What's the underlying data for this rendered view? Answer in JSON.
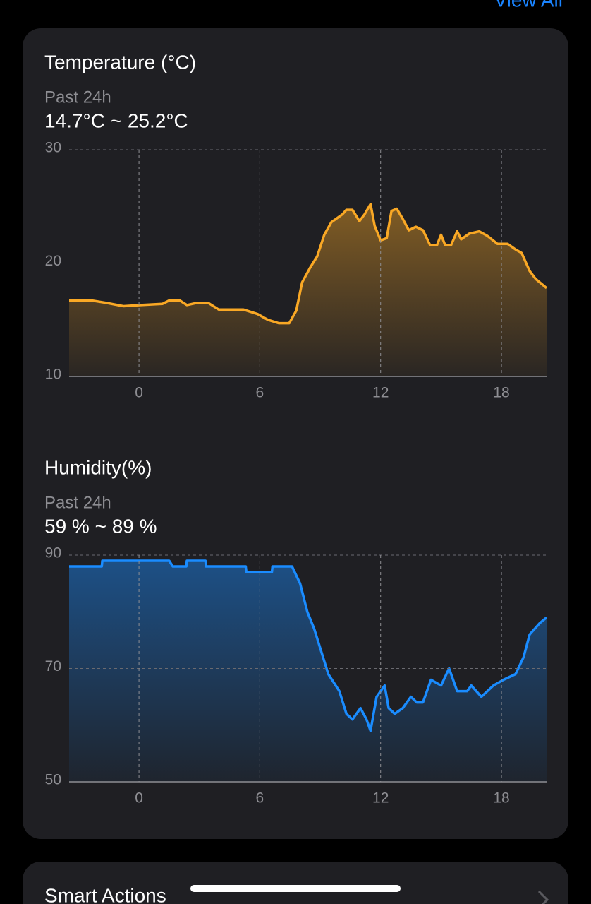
{
  "header": {
    "view_all": "View All"
  },
  "chart_data": [
    {
      "type": "area",
      "title": "Temperature (°C)",
      "subtitle": "Past 24h",
      "range_text": "14.7°C ~ 25.2°C",
      "color": "#f9a825",
      "x": [
        -3.47,
        -2.35,
        -1.65,
        -0.77,
        0.1,
        1.16,
        1.5,
        2.03,
        2.38,
        2.9,
        3.43,
        3.96,
        5.19,
        5.89,
        6.4,
        6.94,
        7.46,
        7.81,
        8.1,
        8.5,
        8.85,
        9.2,
        9.55,
        10.1,
        10.3,
        10.6,
        10.95,
        11.2,
        11.5,
        11.7,
        12.0,
        12.3,
        12.54,
        12.8,
        13.1,
        13.4,
        13.75,
        14.1,
        14.45,
        14.8,
        15.0,
        15.2,
        15.5,
        15.8,
        16.0,
        16.4,
        16.9,
        17.3,
        17.8,
        18.3,
        18.7,
        19.0,
        19.4,
        19.7,
        20.24
      ],
      "values": [
        16.7,
        16.7,
        16.5,
        16.2,
        16.3,
        16.4,
        16.7,
        16.7,
        16.3,
        16.5,
        16.5,
        15.9,
        15.9,
        15.5,
        15.0,
        14.7,
        14.7,
        15.8,
        18.3,
        19.6,
        20.6,
        22.5,
        23.6,
        24.3,
        24.7,
        24.7,
        23.7,
        24.3,
        25.2,
        23.3,
        22.0,
        22.2,
        24.6,
        24.8,
        23.9,
        22.9,
        23.2,
        22.9,
        21.6,
        21.6,
        22.5,
        21.6,
        21.6,
        22.8,
        22.1,
        22.6,
        22.8,
        22.4,
        21.7,
        21.7,
        21.2,
        20.9,
        19.3,
        18.6,
        17.8
      ],
      "xlim": [
        -3.47,
        20.24
      ],
      "xticks": [
        0,
        6,
        12,
        18
      ],
      "ylim": [
        10,
        30
      ],
      "yticks": [
        10,
        20,
        30
      ],
      "grid": true
    },
    {
      "type": "area",
      "title": "Humidity(%)",
      "subtitle": "Past 24h",
      "range_text": "59 % ~ 89 %",
      "color": "#1a8cff",
      "x": [
        -3.47,
        -1.85,
        -1.82,
        1.5,
        1.68,
        2.35,
        2.38,
        3.3,
        3.33,
        5.3,
        5.33,
        6.6,
        6.63,
        7.6,
        8.0,
        8.36,
        8.7,
        9.05,
        9.4,
        9.95,
        10.3,
        10.6,
        11.0,
        11.3,
        11.5,
        11.8,
        12.2,
        12.4,
        12.7,
        13.1,
        13.5,
        13.8,
        14.1,
        14.5,
        15.0,
        15.4,
        15.8,
        16.3,
        16.5,
        17.0,
        17.6,
        18.1,
        18.7,
        19.1,
        19.4,
        19.9,
        20.24
      ],
      "values": [
        88,
        88,
        89,
        89,
        88,
        88,
        89,
        89,
        88,
        88,
        87,
        87,
        88,
        88,
        85,
        80,
        77,
        73,
        69,
        66,
        62,
        61,
        63,
        61,
        59,
        65,
        67,
        63,
        62,
        63,
        65,
        64,
        64,
        68,
        67,
        70,
        66,
        66,
        67,
        65,
        67,
        68,
        69,
        72,
        76,
        78,
        79
      ],
      "xlim": [
        -3.47,
        20.24
      ],
      "xticks": [
        0,
        6,
        12,
        18
      ],
      "ylim": [
        50,
        90
      ],
      "yticks": [
        50,
        70,
        90
      ],
      "grid": true
    }
  ],
  "footer": {
    "smart_actions": "Smart Actions"
  }
}
